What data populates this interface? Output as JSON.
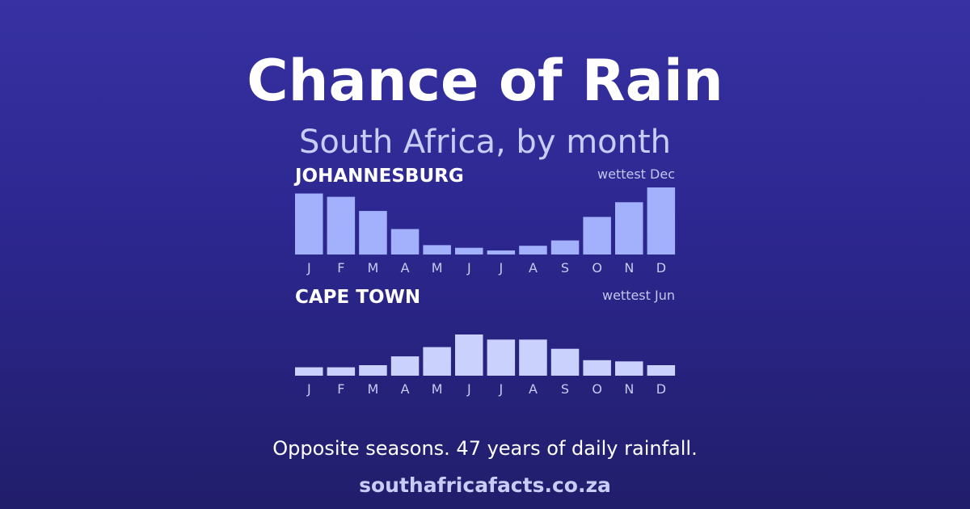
{
  "header": {
    "title": "Chance of Rain",
    "subtitle": "South Africa, by month"
  },
  "footer": {
    "caption": "Opposite seasons. 47 years of daily rainfall.",
    "site": "southafricafacts.co.za"
  },
  "colors": {
    "johannesburg_bar": "#a3b0fb",
    "cape_town_bar": "#cbd1fd"
  },
  "chart_data": [
    {
      "type": "bar",
      "title": "JOHANNESBURG",
      "annotation": "wettest Dec",
      "categories": [
        "J",
        "F",
        "M",
        "A",
        "M",
        "J",
        "J",
        "A",
        "S",
        "O",
        "N",
        "D"
      ],
      "values": [
        91,
        86,
        65,
        38,
        14,
        10,
        6,
        13,
        21,
        56,
        78,
        100
      ],
      "ylim": [
        0,
        100
      ],
      "grid": false
    },
    {
      "type": "bar",
      "title": "CAPE TOWN",
      "annotation": "wettest Jun",
      "categories": [
        "J",
        "F",
        "M",
        "A",
        "M",
        "J",
        "J",
        "A",
        "S",
        "O",
        "N",
        "D"
      ],
      "values": [
        20,
        20,
        25,
        46,
        68,
        98,
        86,
        86,
        64,
        37,
        34,
        25
      ],
      "ylim": [
        0,
        100
      ],
      "grid": false
    }
  ]
}
